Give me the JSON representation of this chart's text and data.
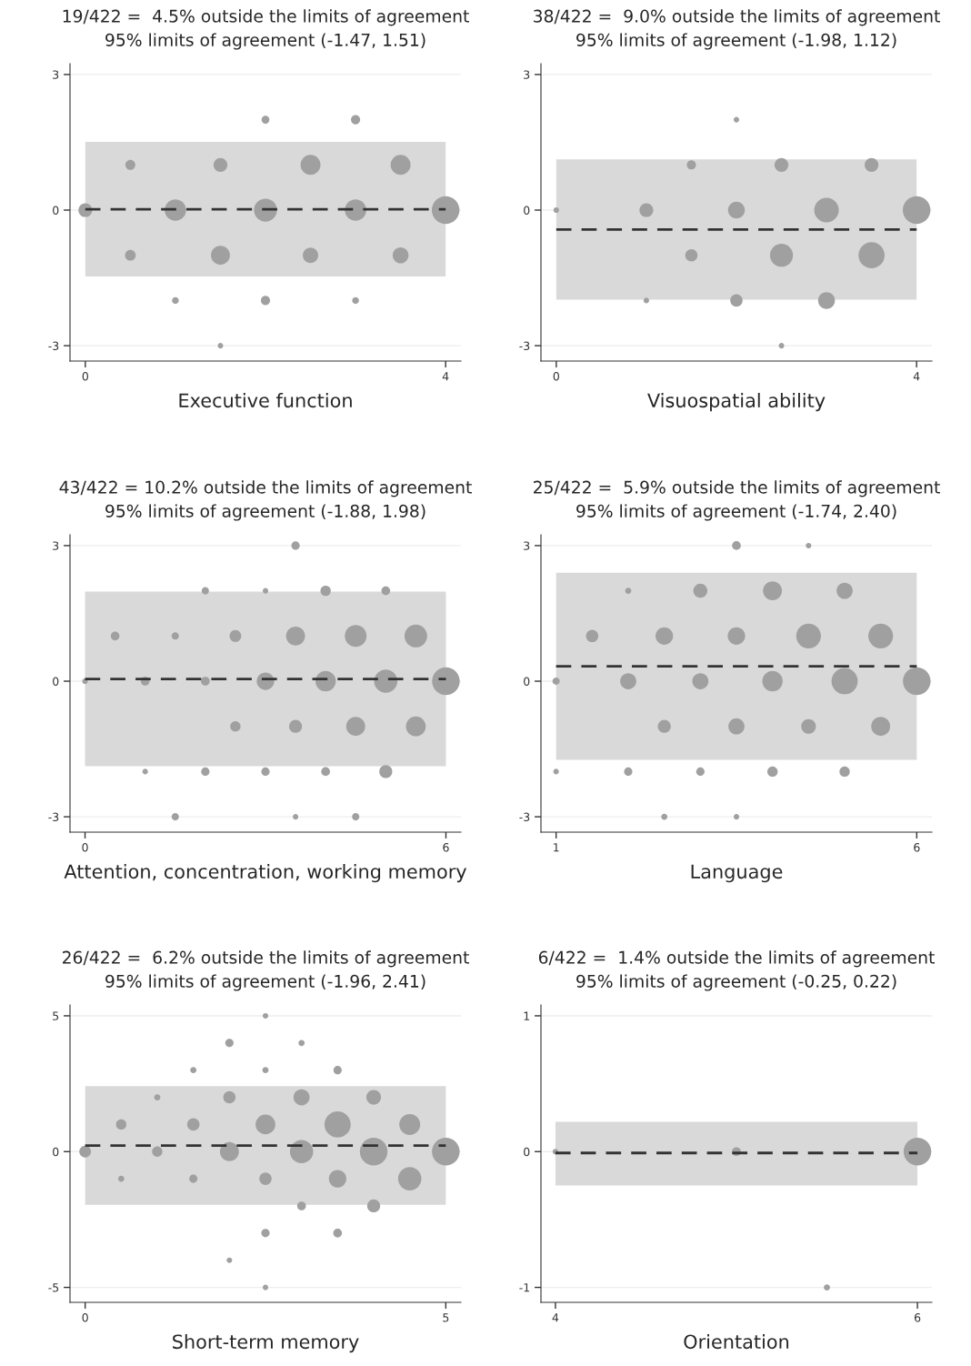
{
  "chart_data": [
    {
      "type": "bubble",
      "title": "19/422 =  4.5% outside the limits of agreement",
      "subtitle": "95% limits of agreement (-1.47, 1.51)",
      "xlabel": "Executive function",
      "color": "#a0a0a0",
      "marker": "circle",
      "grid": "y",
      "x": [
        0,
        0.5,
        0.5,
        1,
        1,
        1.5,
        1.5,
        1.5,
        2,
        2,
        2,
        2.5,
        2.5,
        3,
        3,
        3,
        3.5,
        3.5,
        4
      ],
      "values": [
        0,
        1,
        -1,
        0,
        -2,
        1,
        -1,
        -3,
        2,
        0,
        -2,
        1,
        -1,
        2,
        0,
        -2,
        1,
        -1,
        0
      ],
      "sizes": [
        0.25,
        0.13,
        0.15,
        0.6,
        0.06,
        0.25,
        0.47,
        0.04,
        0.08,
        0.69,
        0.11,
        0.52,
        0.31,
        0.11,
        0.6,
        0.06,
        0.52,
        0.33,
        1
      ],
      "xlim": [
        -0.17,
        4.17
      ],
      "ylim": [
        -3.34,
        3.24
      ],
      "xticks": [
        0,
        4
      ],
      "yticks": [
        -3,
        0,
        3
      ],
      "bands": [
        {
          "axis": "y",
          "from": -1.47,
          "to": 1.51,
          "color": "#d9d9d9"
        }
      ],
      "ref_lines": [
        {
          "axis": "y",
          "value": 0.02,
          "color": "#333333",
          "line_style": "dashed"
        }
      ]
    },
    {
      "type": "bubble",
      "title": "38/422 =  9.0% outside the limits of agreement",
      "subtitle": "95% limits of agreement (-1.98, 1.12)",
      "xlabel": "Visuospatial ability",
      "color": "#a0a0a0",
      "marker": "circle",
      "grid": "y",
      "x": [
        0,
        1,
        1,
        1.5,
        1.5,
        2,
        2,
        2,
        2.5,
        2.5,
        2.5,
        3,
        3,
        3.5,
        3.5,
        4
      ],
      "values": [
        0,
        0,
        -2,
        1,
        -1,
        2,
        0,
        -2,
        1,
        -1,
        -3,
        0,
        -2,
        1,
        -1,
        0
      ],
      "sizes": [
        0.04,
        0.25,
        0.04,
        0.11,
        0.2,
        0.04,
        0.37,
        0.2,
        0.25,
        0.69,
        0.04,
        0.79,
        0.37,
        0.25,
        0.89,
        1
      ],
      "xlim": [
        -0.17,
        4.17
      ],
      "ylim": [
        -3.34,
        3.24
      ],
      "xticks": [
        0,
        4
      ],
      "yticks": [
        -3,
        0,
        3
      ],
      "bands": [
        {
          "axis": "y",
          "from": -1.98,
          "to": 1.12,
          "color": "#d9d9d9"
        }
      ],
      "ref_lines": [
        {
          "axis": "y",
          "value": -0.43,
          "color": "#333333",
          "line_style": "dashed"
        }
      ]
    },
    {
      "type": "bubble",
      "title": "43/422 = 10.2% outside the limits of agreement",
      "subtitle": "95% limits of agreement (-1.88, 1.98)",
      "xlabel": "Attention, concentration, working memory",
      "color": "#a0a0a0",
      "marker": "circle",
      "grid": "y",
      "x": [
        0,
        0.5,
        1,
        1,
        1.5,
        1.5,
        2,
        2,
        2,
        2.5,
        2.5,
        3,
        3,
        3,
        3.5,
        3.5,
        3.5,
        3.5,
        4,
        4,
        4,
        4.5,
        4.5,
        4.5,
        5,
        5,
        5,
        5.5,
        5.5,
        6
      ],
      "values": [
        0,
        1,
        0,
        -2,
        1,
        -3,
        2,
        0,
        -2,
        1,
        -1,
        2,
        0,
        -2,
        3,
        1,
        -1,
        -3,
        2,
        0,
        -2,
        1,
        -1,
        -3,
        2,
        0,
        -2,
        1,
        -1,
        0
      ],
      "sizes": [
        0.04,
        0.1,
        0.1,
        0.04,
        0.07,
        0.07,
        0.07,
        0.1,
        0.09,
        0.18,
        0.14,
        0.04,
        0.4,
        0.09,
        0.09,
        0.47,
        0.22,
        0.04,
        0.14,
        0.54,
        0.1,
        0.62,
        0.47,
        0.07,
        0.1,
        0.71,
        0.22,
        0.67,
        0.51,
        1
      ],
      "xlim": [
        -0.25,
        6.25
      ],
      "ylim": [
        -3.34,
        3.24
      ],
      "xticks": [
        0,
        6
      ],
      "yticks": [
        -3,
        0,
        3
      ],
      "bands": [
        {
          "axis": "y",
          "from": -1.88,
          "to": 1.98,
          "color": "#d9d9d9"
        }
      ],
      "ref_lines": [
        {
          "axis": "y",
          "value": 0.05,
          "color": "#333333",
          "line_style": "dashed"
        }
      ]
    },
    {
      "type": "bubble",
      "title": "25/422 =  5.9% outside the limits of agreement",
      "subtitle": "95% limits of agreement (-1.74, 2.40)",
      "xlabel": "Language",
      "color": "#a0a0a0",
      "marker": "circle",
      "grid": "y",
      "x": [
        1,
        1,
        1.5,
        2,
        2,
        2,
        2.5,
        2.5,
        2.5,
        3,
        3,
        3,
        3.5,
        3.5,
        3.5,
        3.5,
        4,
        4,
        4,
        4.5,
        4.5,
        4.5,
        5,
        5,
        5,
        5.5,
        5.5,
        6
      ],
      "values": [
        0,
        -2,
        1,
        2,
        0,
        -2,
        1,
        -1,
        -3,
        2,
        0,
        -2,
        3,
        1,
        -1,
        -3,
        2,
        0,
        -2,
        3,
        1,
        -1,
        2,
        0,
        -2,
        1,
        -1,
        0
      ],
      "sizes": [
        0.07,
        0.04,
        0.2,
        0.05,
        0.34,
        0.09,
        0.4,
        0.22,
        0.05,
        0.26,
        0.34,
        0.09,
        0.1,
        0.4,
        0.34,
        0.04,
        0.47,
        0.54,
        0.14,
        0.04,
        0.8,
        0.28,
        0.34,
        0.9,
        0.14,
        0.8,
        0.47,
        1
      ],
      "xlim": [
        0.79,
        6.21
      ],
      "ylim": [
        -3.34,
        3.24
      ],
      "xticks": [
        1,
        6
      ],
      "yticks": [
        -3,
        0,
        3
      ],
      "bands": [
        {
          "axis": "y",
          "from": -1.74,
          "to": 2.4,
          "color": "#d9d9d9"
        }
      ],
      "ref_lines": [
        {
          "axis": "y",
          "value": 0.33,
          "color": "#333333",
          "line_style": "dashed"
        }
      ]
    },
    {
      "type": "bubble",
      "title": "26/422 =  6.2% outside the limits of agreement",
      "subtitle": "95% limits of agreement (-1.96, 2.41)",
      "xlabel": "Short-term memory",
      "color": "#a0a0a0",
      "marker": "circle",
      "grid": "y",
      "x": [
        0,
        0.5,
        0.5,
        1,
        1,
        1.5,
        1.5,
        1.5,
        2,
        2,
        2,
        2,
        2.5,
        2.5,
        2.5,
        2.5,
        2.5,
        2.5,
        3,
        3,
        3,
        3,
        3.5,
        3.5,
        3.5,
        3.5,
        4,
        4,
        4,
        4.5,
        4.5,
        5
      ],
      "values": [
        0,
        1,
        -1,
        2,
        0,
        3,
        1,
        -1,
        4,
        2,
        0,
        -4,
        5,
        3,
        1,
        -1,
        -3,
        -5,
        4,
        2,
        0,
        -2,
        3,
        1,
        -1,
        -3,
        2,
        0,
        -2,
        1,
        -1,
        0
      ],
      "sizes": [
        0.18,
        0.14,
        0.05,
        0.05,
        0.14,
        0.05,
        0.2,
        0.09,
        0.09,
        0.2,
        0.47,
        0.04,
        0.04,
        0.05,
        0.51,
        0.2,
        0.09,
        0.04,
        0.05,
        0.34,
        0.71,
        0.1,
        0.09,
        0.9,
        0.4,
        0.1,
        0.28,
        1,
        0.22,
        0.57,
        0.71,
        1
      ],
      "xlim": [
        -0.21,
        5.21
      ],
      "ylim": [
        -5.55,
        5.4
      ],
      "xticks": [
        0,
        5
      ],
      "yticks": [
        -5,
        0,
        5
      ],
      "bands": [
        {
          "axis": "y",
          "from": -1.96,
          "to": 2.41,
          "color": "#d9d9d9"
        }
      ],
      "ref_lines": [
        {
          "axis": "y",
          "value": 0.22,
          "color": "#333333",
          "line_style": "dashed"
        }
      ]
    },
    {
      "type": "bubble",
      "title": "6/422 =  1.4% outside the limits of agreement",
      "subtitle": "95% limits of agreement (-0.25, 0.22)",
      "xlabel": "Orientation",
      "color": "#a0a0a0",
      "marker": "circle",
      "grid": "y",
      "x": [
        4,
        5,
        5.5,
        6
      ],
      "values": [
        0,
        0,
        -1,
        0
      ],
      "sizes": [
        0.04,
        0.1,
        0.05,
        1
      ],
      "xlim": [
        3.92,
        6.08
      ],
      "ylim": [
        -1.11,
        1.08
      ],
      "xticks": [
        4,
        6
      ],
      "yticks": [
        -1,
        0,
        1
      ],
      "bands": [
        {
          "axis": "y",
          "from": -0.25,
          "to": 0.22,
          "color": "#d9d9d9"
        }
      ],
      "ref_lines": [
        {
          "axis": "y",
          "value": -0.01,
          "color": "#333333",
          "line_style": "dashed"
        }
      ]
    }
  ]
}
